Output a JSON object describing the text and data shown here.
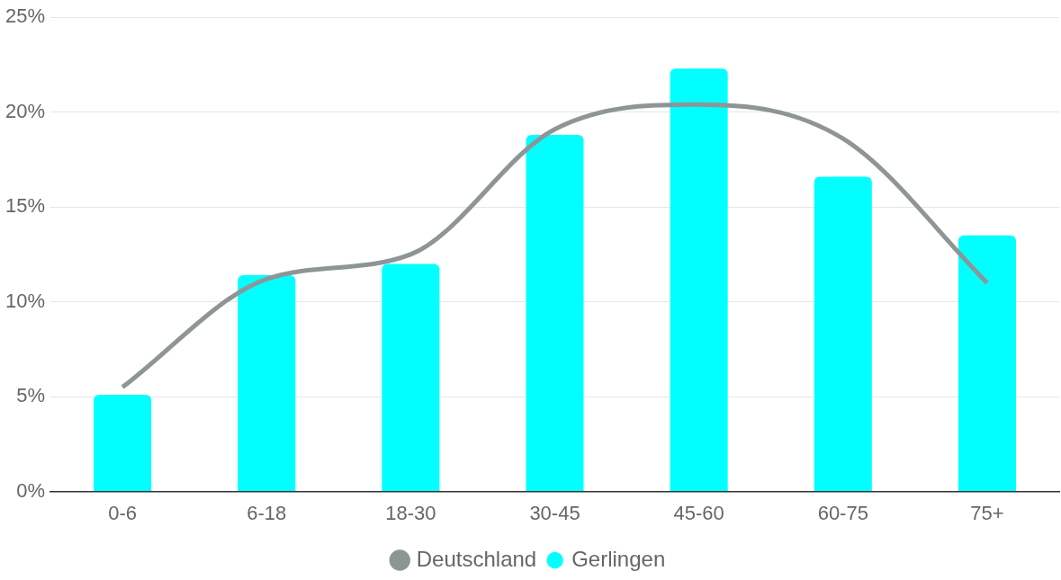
{
  "chart_data": {
    "type": "bar",
    "categories": [
      "0-6",
      "6-18",
      "18-30",
      "30-45",
      "45-60",
      "60-75",
      "75+"
    ],
    "series": [
      {
        "name": "Deutschland",
        "type": "line",
        "color": "#8e9597",
        "values": [
          5.5,
          11.2,
          12.5,
          19.1,
          20.4,
          18.6,
          11.0
        ]
      },
      {
        "name": "Gerlingen",
        "color": "#00ffff",
        "values": [
          5.1,
          11.4,
          12.0,
          18.8,
          22.3,
          16.6,
          13.5
        ]
      }
    ],
    "ylim": [
      0,
      25
    ],
    "yticks": [
      {
        "value": 0,
        "label": "0%"
      },
      {
        "value": 5,
        "label": "5%"
      },
      {
        "value": 10,
        "label": "10%"
      },
      {
        "value": 15,
        "label": "15%"
      },
      {
        "value": 20,
        "label": "20%"
      },
      {
        "value": 25,
        "label": "25%"
      }
    ],
    "grid": "y",
    "legend": "bottom",
    "marker": "none"
  }
}
